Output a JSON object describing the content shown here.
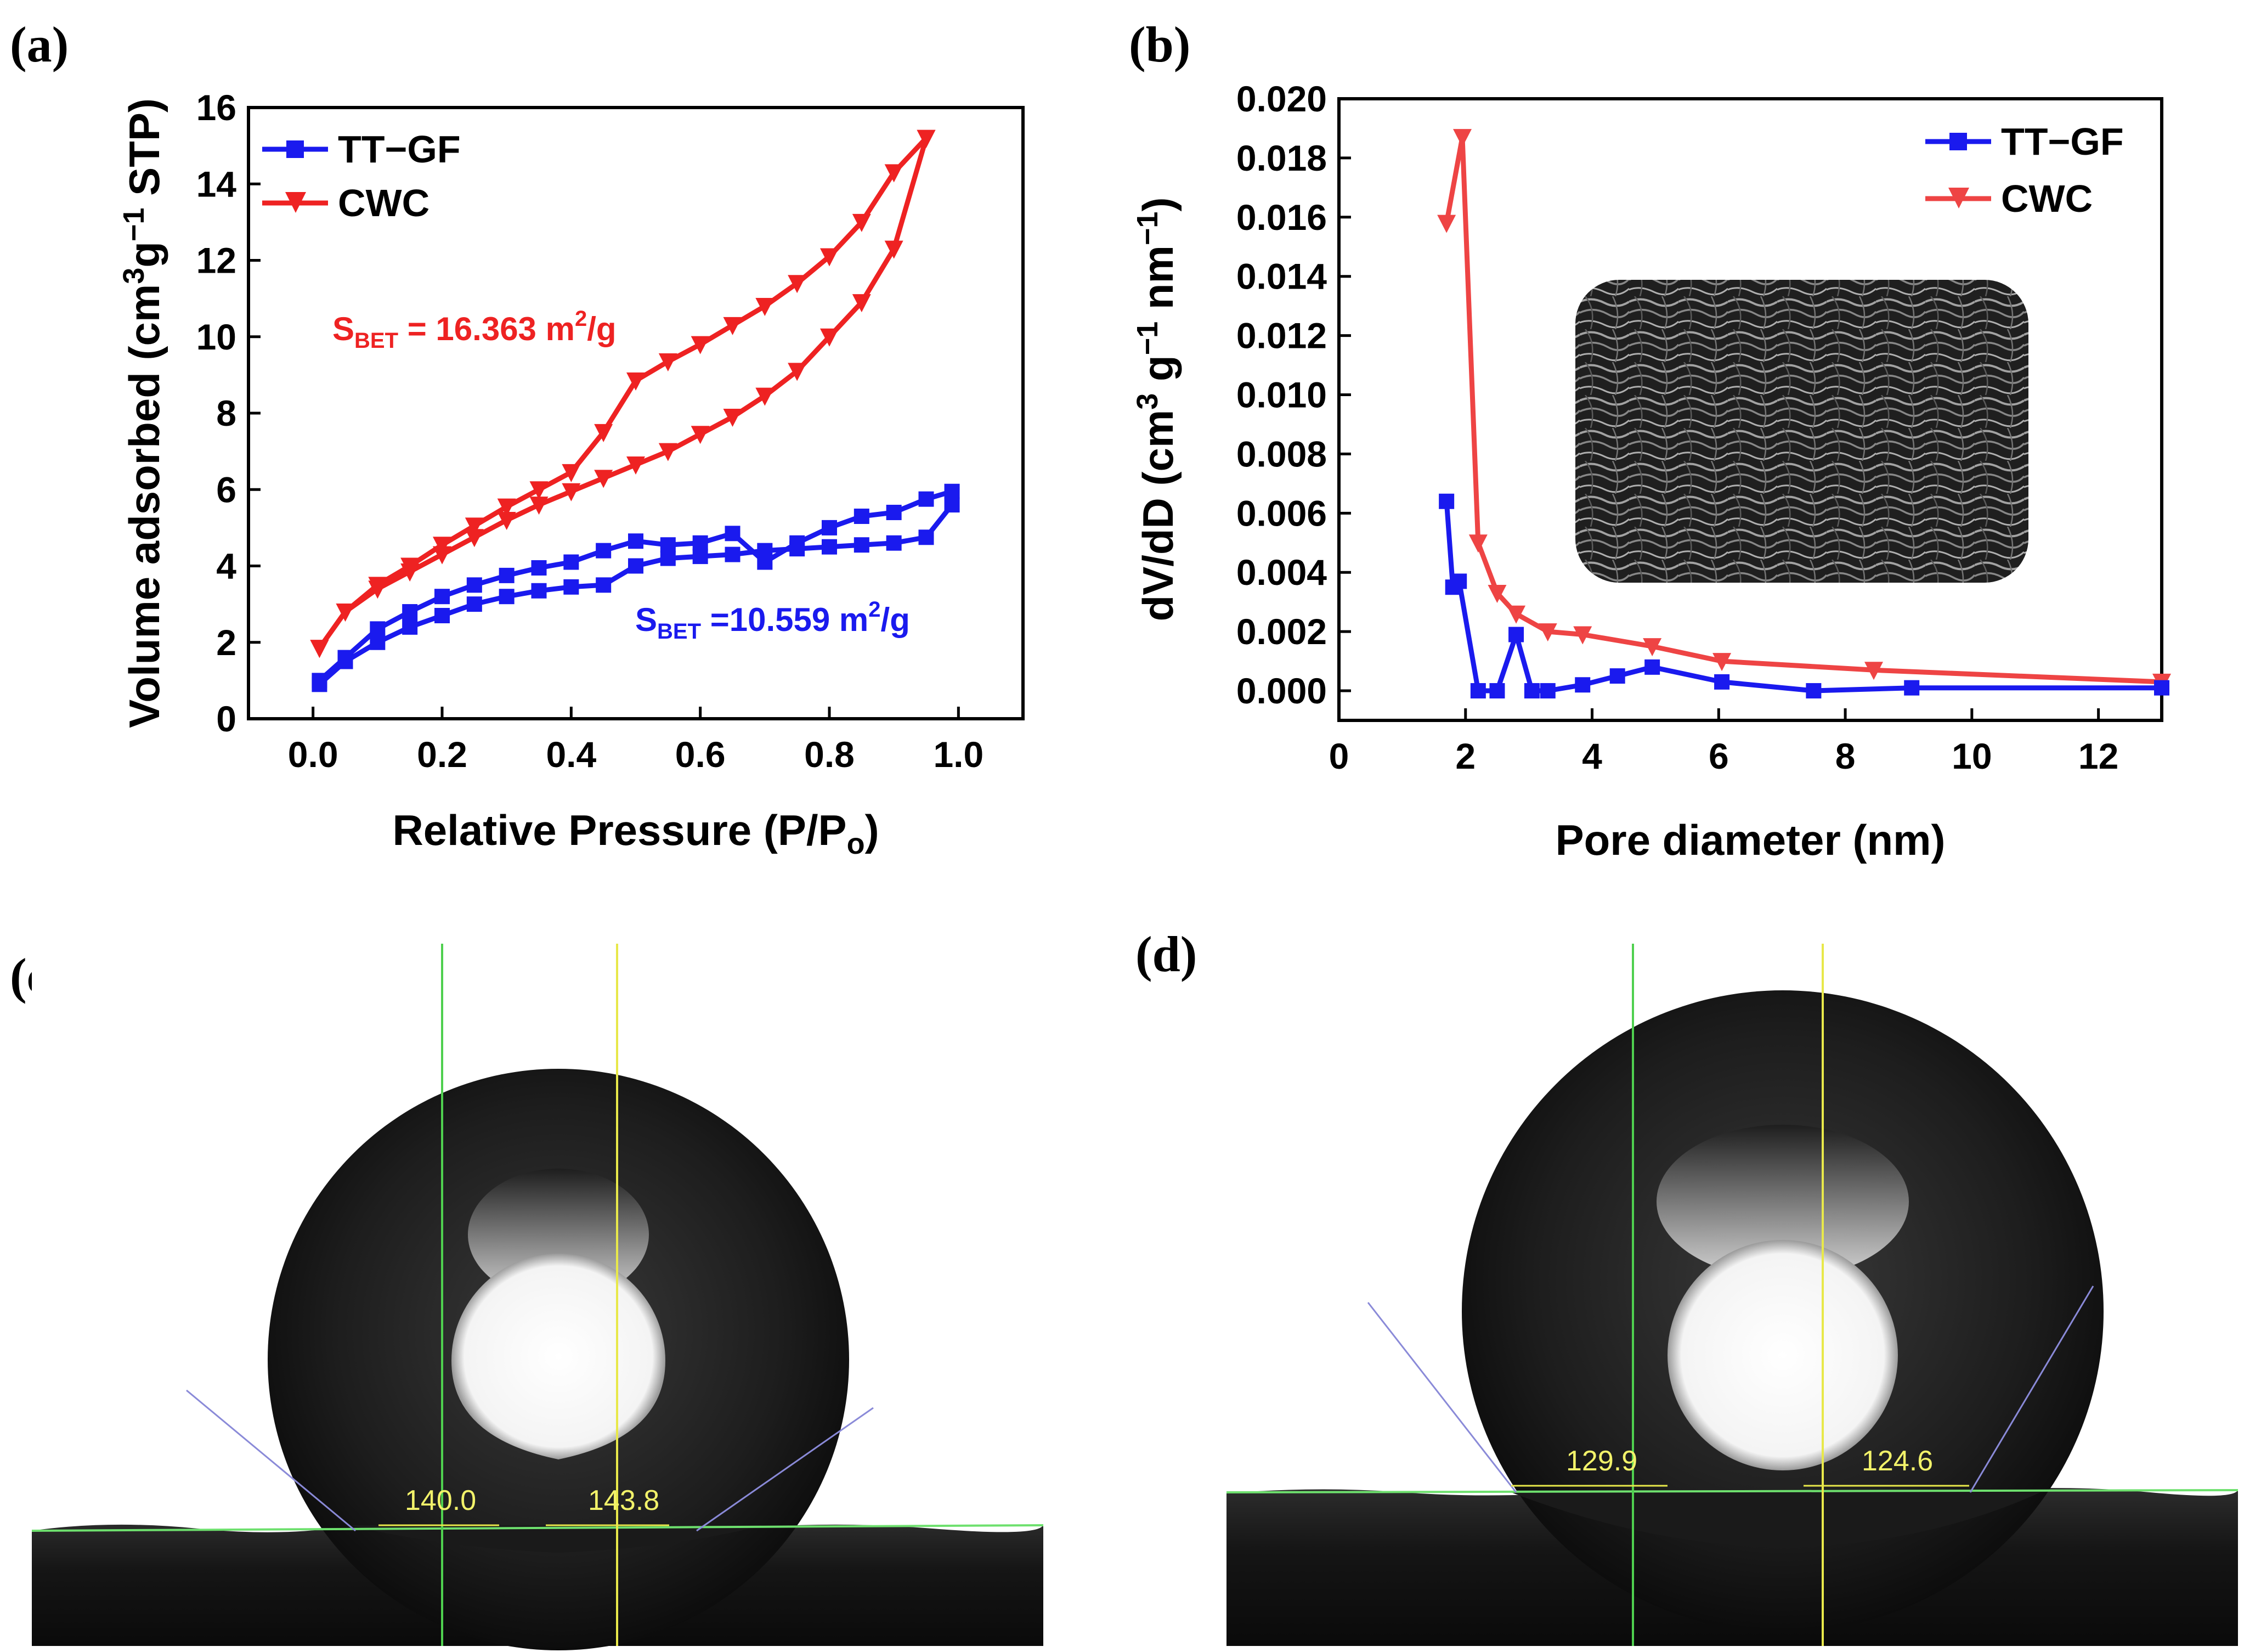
{
  "panels": {
    "a": "(a)",
    "b": "(b)",
    "c": "(c)",
    "d": "(d)"
  },
  "colors": {
    "tt_gf": "#1a1aee",
    "cwc": "#ee2222",
    "cwc_b": "#ee4444"
  },
  "chart_data": [
    {
      "id": "a",
      "type": "line",
      "xlabel": "Relative Pressure (P/P",
      "xlabel_sub": "o",
      "xlabel_tail": ")",
      "ylabel_text": {
        "part1": "Volume adsorbed (cm",
        "sup1": "3",
        "part2": "g",
        "sup2": "−1",
        "part3": " STP)"
      },
      "xlim": [
        -0.1,
        1.1
      ],
      "ylim": [
        0,
        16
      ],
      "xticks": [
        "0.0",
        "0.2",
        "0.4",
        "0.6",
        "0.8",
        "1.0"
      ],
      "yticks": [
        "0",
        "2",
        "4",
        "6",
        "8",
        "10",
        "12",
        "14",
        "16"
      ],
      "legend": [
        "TT−GF",
        "CWC"
      ],
      "annotations": {
        "cwc": {
          "main": "S",
          "sub": "BET",
          "value": " = 16.363 m",
          "sup": "2",
          "unit": "/g"
        },
        "tt_gf": {
          "main": "S",
          "sub": "BET",
          "value": " =10.559 m",
          "sup": "2",
          "unit": "/g"
        }
      },
      "series": [
        {
          "name": "TT−GF",
          "marker": "square",
          "adsorption": {
            "x": [
              0.01,
              0.05,
              0.1,
              0.15,
              0.2,
              0.25,
              0.3,
              0.35,
              0.4,
              0.45,
              0.5,
              0.55,
              0.6,
              0.65,
              0.7,
              0.75,
              0.8,
              0.85,
              0.9,
              0.95,
              0.99
            ],
            "y": [
              0.9,
              1.5,
              2.0,
              2.4,
              2.7,
              3.0,
              3.2,
              3.35,
              3.45,
              3.5,
              4.0,
              4.2,
              4.25,
              4.3,
              4.4,
              4.45,
              4.5,
              4.55,
              4.6,
              4.75,
              5.6
            ]
          },
          "desorption": {
            "x": [
              0.99,
              0.95,
              0.9,
              0.85,
              0.8,
              0.75,
              0.7,
              0.65,
              0.6,
              0.55,
              0.5,
              0.45,
              0.4,
              0.35,
              0.3,
              0.25,
              0.2,
              0.15,
              0.1,
              0.05,
              0.01
            ],
            "y": [
              5.95,
              5.75,
              5.4,
              5.3,
              5.0,
              4.6,
              4.1,
              4.85,
              4.6,
              4.55,
              4.65,
              4.4,
              4.1,
              3.95,
              3.75,
              3.5,
              3.2,
              2.8,
              2.35,
              1.6,
              1.0
            ]
          }
        },
        {
          "name": "CWC",
          "marker": "triangle-down",
          "adsorption": {
            "x": [
              0.01,
              0.05,
              0.1,
              0.15,
              0.2,
              0.25,
              0.3,
              0.35,
              0.4,
              0.45,
              0.5,
              0.55,
              0.6,
              0.65,
              0.7,
              0.75,
              0.8,
              0.85,
              0.9,
              0.95
            ],
            "y": [
              1.85,
              2.8,
              3.4,
              3.85,
              4.3,
              4.75,
              5.2,
              5.6,
              5.95,
              6.3,
              6.65,
              7.0,
              7.45,
              7.9,
              8.45,
              9.1,
              10.0,
              10.9,
              12.3,
              15.2
            ]
          },
          "desorption": {
            "x": [
              0.95,
              0.9,
              0.85,
              0.8,
              0.75,
              0.7,
              0.65,
              0.6,
              0.55,
              0.5,
              0.45,
              0.4,
              0.35,
              0.3,
              0.25,
              0.2,
              0.15,
              0.1,
              0.05,
              0.01
            ],
            "y": [
              15.2,
              14.3,
              13.0,
              12.1,
              11.4,
              10.8,
              10.3,
              9.8,
              9.35,
              8.85,
              7.5,
              6.45,
              6.0,
              5.55,
              5.05,
              4.55,
              4.0,
              3.5,
              2.8,
              1.85
            ]
          }
        }
      ]
    },
    {
      "id": "b",
      "type": "line",
      "xlabel": "Pore diameter (nm)",
      "ylabel_text": {
        "part1": "dV/dD (cm",
        "sup1": "3",
        "part2": " g",
        "sup2": "−1",
        "part3": " nm",
        "sup3": "−1",
        "part4": ")"
      },
      "xlim": [
        0,
        13
      ],
      "ylim": [
        -0.001,
        0.02
      ],
      "xticks": [
        "0",
        "2",
        "4",
        "6",
        "8",
        "10",
        "12"
      ],
      "yticks": [
        "0.000",
        "0.002",
        "0.004",
        "0.006",
        "0.008",
        "0.010",
        "0.012",
        "0.014",
        "0.016",
        "0.018",
        "0.020"
      ],
      "legend": [
        "TT−GF",
        "CWC"
      ],
      "series": [
        {
          "name": "TT−GF",
          "marker": "square",
          "x": [
            1.7,
            1.8,
            1.9,
            2.2,
            2.5,
            2.8,
            3.05,
            3.3,
            3.85,
            4.4,
            4.95,
            6.05,
            7.5,
            9.05,
            13.0
          ],
          "y": [
            0.0064,
            0.0035,
            0.0037,
            0.0,
            0.0,
            0.0019,
            0.0,
            0.0,
            0.0002,
            0.0005,
            0.0008,
            0.0003,
            0.0,
            0.0001,
            0.0001
          ]
        },
        {
          "name": "CWC",
          "marker": "triangle-down",
          "x": [
            1.7,
            1.95,
            2.2,
            2.5,
            2.8,
            3.3,
            3.85,
            4.95,
            6.05,
            8.45,
            13.0
          ],
          "y": [
            0.0158,
            0.0187,
            0.005,
            0.0033,
            0.0026,
            0.002,
            0.0019,
            0.0015,
            0.001,
            0.0007,
            0.0003
          ]
        }
      ]
    }
  ],
  "contact_angles": {
    "c": {
      "left": "140.0",
      "right": "143.8"
    },
    "d": {
      "left": "129.9",
      "right": "124.6"
    }
  }
}
